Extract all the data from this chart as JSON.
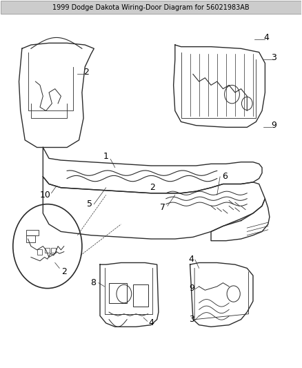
{
  "title": "1999 Dodge Dakota Wiring-Door Diagram for 56021983AB",
  "background_color": "#ffffff",
  "line_color": "#2a2a2a",
  "label_color": "#000000",
  "label_fontsize": 9,
  "title_fontsize": 7,
  "figsize": [
    4.38,
    5.33
  ],
  "dpi": 100
}
